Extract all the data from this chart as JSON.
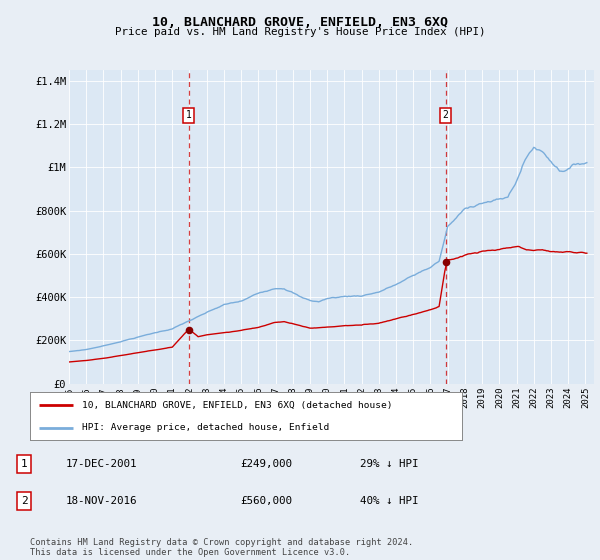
{
  "title": "10, BLANCHARD GROVE, ENFIELD, EN3 6XQ",
  "subtitle": "Price paid vs. HM Land Registry's House Price Index (HPI)",
  "background_color": "#e8eef5",
  "plot_bg_color": "#dce8f4",
  "x_start": 1995.0,
  "x_end": 2025.5,
  "y_min": 0,
  "y_max": 1450000,
  "y_ticks": [
    0,
    200000,
    400000,
    600000,
    800000,
    1000000,
    1200000,
    1400000
  ],
  "y_tick_labels": [
    "£0",
    "£200K",
    "£400K",
    "£600K",
    "£800K",
    "£1M",
    "£1.2M",
    "£1.4M"
  ],
  "x_ticks": [
    1995,
    1996,
    1997,
    1998,
    1999,
    2000,
    2001,
    2002,
    2003,
    2004,
    2005,
    2006,
    2007,
    2008,
    2009,
    2010,
    2011,
    2012,
    2013,
    2014,
    2015,
    2016,
    2017,
    2018,
    2019,
    2020,
    2021,
    2022,
    2023,
    2024,
    2025
  ],
  "sale1_x": 2001.96,
  "sale1_y": 249000,
  "sale1_label": "1",
  "sale1_date": "17-DEC-2001",
  "sale1_price": "£249,000",
  "sale1_pct": "29% ↓ HPI",
  "sale2_x": 2016.88,
  "sale2_y": 560000,
  "sale2_label": "2",
  "sale2_date": "18-NOV-2016",
  "sale2_price": "£560,000",
  "sale2_pct": "40% ↓ HPI",
  "red_line_color": "#cc0000",
  "blue_line_color": "#7aaddb",
  "sale_dot_color": "#880000",
  "dashed_line_color": "#cc0000",
  "legend_label_red": "10, BLANCHARD GROVE, ENFIELD, EN3 6XQ (detached house)",
  "legend_label_blue": "HPI: Average price, detached house, Enfield",
  "footer_text": "Contains HM Land Registry data © Crown copyright and database right 2024.\nThis data is licensed under the Open Government Licence v3.0."
}
